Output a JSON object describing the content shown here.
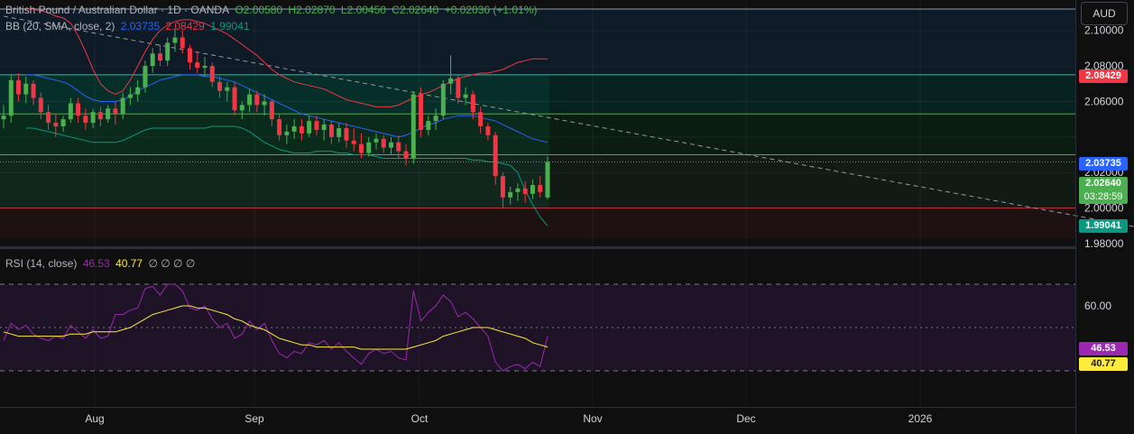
{
  "header": {
    "symbol_title": "British Pound / Australian Dollar · 1D · OANDA",
    "open": "O2.00580",
    "high": "H2.02870",
    "low": "L2.00450",
    "close": "C2.02640",
    "change": "+0.02036 (+1.01%)"
  },
  "bb_legend": {
    "label": "BB (20, SMA, close, 2)",
    "basis": "2.03735",
    "upper": "2.08429",
    "lower": "1.99041"
  },
  "rsi_legend": {
    "label": "RSI (14, close)",
    "rsi": "46.53",
    "ma": "40.77",
    "extra": "∅ ∅ ∅ ∅"
  },
  "currency_button": "AUD",
  "price_axis_labels": [
    "2.10000",
    "2.08000",
    "2.06000",
    "2.02000",
    "2.00000",
    "1.98000"
  ],
  "price_tags": {
    "upper": {
      "text": "2.08429",
      "color": "#f23645"
    },
    "basis": {
      "text": "2.03735",
      "color": "#2962ff"
    },
    "last": {
      "text": "2.02640",
      "countdown": "03:28:59",
      "color": "#4caf50"
    },
    "lower": {
      "text": "1.99041",
      "color": "#089981"
    }
  },
  "rsi_axis_labels": [
    "60.00"
  ],
  "rsi_tags": {
    "rsi": {
      "text": "46.53",
      "color": "#9c27b0"
    },
    "ma": {
      "text": "40.77",
      "color": "#ffeb3b"
    }
  },
  "time_axis_labels": [
    "Aug",
    "Sep",
    "Oct",
    "Nov",
    "Dec",
    "2026"
  ],
  "colors": {
    "up": "#4caf50",
    "down": "#f23645",
    "bb_basis": "#2962ff",
    "bb_upper": "#f23645",
    "bb_lower": "#089981",
    "rsi": "#9c27b0",
    "rsi_ma": "#ffeb3b"
  },
  "chart_data": {
    "type": "candlestick",
    "price_range": [
      1.98,
      2.11
    ],
    "rsi_range": [
      20,
      80
    ],
    "horizontal_levels": [
      2.112,
      2.075,
      2.053,
      2.03,
      2.0
    ],
    "trendline": {
      "start": [
        0,
        2.108
      ],
      "end": [
        164,
        1.98
      ]
    },
    "candles": [
      [
        2.05,
        2.058,
        2.045,
        2.052
      ],
      [
        2.052,
        2.075,
        2.048,
        2.072
      ],
      [
        2.072,
        2.076,
        2.06,
        2.064
      ],
      [
        2.064,
        2.074,
        2.059,
        2.07
      ],
      [
        2.07,
        2.072,
        2.058,
        2.062
      ],
      [
        2.062,
        2.065,
        2.05,
        2.054
      ],
      [
        2.054,
        2.058,
        2.044,
        2.048
      ],
      [
        2.048,
        2.053,
        2.04,
        2.046
      ],
      [
        2.046,
        2.052,
        2.043,
        2.05
      ],
      [
        2.05,
        2.062,
        2.048,
        2.059
      ],
      [
        2.059,
        2.062,
        2.048,
        2.052
      ],
      [
        2.052,
        2.056,
        2.044,
        2.048
      ],
      [
        2.048,
        2.056,
        2.045,
        2.054
      ],
      [
        2.054,
        2.057,
        2.046,
        2.05
      ],
      [
        2.05,
        2.058,
        2.048,
        2.056
      ],
      [
        2.056,
        2.06,
        2.047,
        2.053
      ],
      [
        2.053,
        2.065,
        2.05,
        2.062
      ],
      [
        2.062,
        2.068,
        2.058,
        2.064
      ],
      [
        2.064,
        2.072,
        2.06,
        2.068
      ],
      [
        2.068,
        2.083,
        2.065,
        2.08
      ],
      [
        2.08,
        2.09,
        2.076,
        2.087
      ],
      [
        2.087,
        2.092,
        2.08,
        2.083
      ],
      [
        2.083,
        2.096,
        2.08,
        2.093
      ],
      [
        2.093,
        2.101,
        2.088,
        2.096
      ],
      [
        2.096,
        2.1,
        2.087,
        2.09
      ],
      [
        2.09,
        2.092,
        2.078,
        2.082
      ],
      [
        2.082,
        2.088,
        2.076,
        2.079
      ],
      [
        2.079,
        2.085,
        2.074,
        2.08
      ],
      [
        2.08,
        2.082,
        2.068,
        2.071
      ],
      [
        2.071,
        2.074,
        2.062,
        2.066
      ],
      [
        2.066,
        2.071,
        2.06,
        2.068
      ],
      [
        2.068,
        2.071,
        2.052,
        2.055
      ],
      [
        2.055,
        2.06,
        2.05,
        2.058
      ],
      [
        2.058,
        2.067,
        2.054,
        2.064
      ],
      [
        2.064,
        2.066,
        2.054,
        2.058
      ],
      [
        2.058,
        2.064,
        2.052,
        2.06
      ],
      [
        2.06,
        2.061,
        2.046,
        2.05
      ],
      [
        2.05,
        2.053,
        2.038,
        2.041
      ],
      [
        2.041,
        2.047,
        2.036,
        2.043
      ],
      [
        2.043,
        2.05,
        2.039,
        2.046
      ],
      [
        2.046,
        2.05,
        2.038,
        2.042
      ],
      [
        2.042,
        2.052,
        2.04,
        2.049
      ],
      [
        2.049,
        2.052,
        2.041,
        2.044
      ],
      [
        2.044,
        2.05,
        2.038,
        2.047
      ],
      [
        2.047,
        2.049,
        2.036,
        2.04
      ],
      [
        2.04,
        2.048,
        2.037,
        2.045
      ],
      [
        2.045,
        2.048,
        2.034,
        2.038
      ],
      [
        2.038,
        2.045,
        2.032,
        2.036
      ],
      [
        2.036,
        2.042,
        2.028,
        2.031
      ],
      [
        2.031,
        2.04,
        2.029,
        2.037
      ],
      [
        2.037,
        2.042,
        2.033,
        2.039
      ],
      [
        2.039,
        2.041,
        2.031,
        2.034
      ],
      [
        2.034,
        2.04,
        2.03,
        2.037
      ],
      [
        2.037,
        2.041,
        2.028,
        2.032
      ],
      [
        2.032,
        2.036,
        2.024,
        2.028
      ],
      [
        2.028,
        2.066,
        2.025,
        2.064
      ],
      [
        2.064,
        2.068,
        2.04,
        2.044
      ],
      [
        2.044,
        2.052,
        2.041,
        2.049
      ],
      [
        2.049,
        2.056,
        2.044,
        2.052
      ],
      [
        2.052,
        2.072,
        2.05,
        2.07
      ],
      [
        2.07,
        2.086,
        2.064,
        2.073
      ],
      [
        2.073,
        2.075,
        2.059,
        2.062
      ],
      [
        2.062,
        2.068,
        2.058,
        2.064
      ],
      [
        2.064,
        2.066,
        2.05,
        2.054
      ],
      [
        2.054,
        2.057,
        2.042,
        2.046
      ],
      [
        2.046,
        2.048,
        2.038,
        2.041
      ],
      [
        2.041,
        2.043,
        2.013,
        2.018
      ],
      [
        2.018,
        2.02,
        2.0,
        2.006
      ],
      [
        2.006,
        2.012,
        2.002,
        2.009
      ],
      [
        2.009,
        2.014,
        2.004,
        2.011
      ],
      [
        2.011,
        2.015,
        2.003,
        2.008
      ],
      [
        2.008,
        2.016,
        2.005,
        2.013
      ],
      [
        2.013,
        2.018,
        2.006,
        2.009
      ],
      [
        2.006,
        2.029,
        2.005,
        2.026
      ]
    ],
    "bb_upper": [
      2.112,
      2.112,
      2.111,
      2.11,
      2.108,
      2.107,
      2.104,
      2.097,
      2.088,
      2.078,
      2.07,
      2.066,
      2.064,
      2.066,
      2.072,
      2.08,
      2.088,
      2.095,
      2.1,
      2.103,
      2.105,
      2.106,
      2.106,
      2.105,
      2.104,
      2.102,
      2.1,
      2.098,
      2.095,
      2.092,
      2.089,
      2.086,
      2.082,
      2.078,
      2.075,
      2.073,
      2.071,
      2.07,
      2.069,
      2.068,
      2.067,
      2.065,
      2.063,
      2.061,
      2.06,
      2.059,
      2.058,
      2.057,
      2.057,
      2.057,
      2.058,
      2.06,
      2.062,
      2.064,
      2.065,
      2.067,
      2.069,
      2.071,
      2.073,
      2.074,
      2.075,
      2.076,
      2.076,
      2.077,
      2.078,
      2.08,
      2.082,
      2.083,
      2.084,
      2.084,
      2.084
    ],
    "bb_basis": [
      2.075,
      2.075,
      2.074,
      2.073,
      2.072,
      2.071,
      2.069,
      2.066,
      2.063,
      2.061,
      2.06,
      2.06,
      2.06,
      2.061,
      2.063,
      2.066,
      2.068,
      2.07,
      2.072,
      2.073,
      2.074,
      2.075,
      2.075,
      2.075,
      2.074,
      2.074,
      2.073,
      2.072,
      2.071,
      2.069,
      2.067,
      2.065,
      2.063,
      2.061,
      2.059,
      2.057,
      2.055,
      2.053,
      2.052,
      2.051,
      2.05,
      2.049,
      2.048,
      2.047,
      2.046,
      2.045,
      2.044,
      2.043,
      2.042,
      2.041,
      2.04,
      2.041,
      2.043,
      2.045,
      2.047,
      2.048,
      2.05,
      2.051,
      2.052,
      2.052,
      2.052,
      2.051,
      2.05,
      2.049,
      2.047,
      2.045,
      2.043,
      2.041,
      2.039,
      2.038,
      2.037
    ],
    "bb_lower": [
      2.045,
      2.045,
      2.044,
      2.043,
      2.042,
      2.041,
      2.04,
      2.039,
      2.038,
      2.037,
      2.037,
      2.037,
      2.037,
      2.038,
      2.04,
      2.042,
      2.044,
      2.045,
      2.045,
      2.045,
      2.045,
      2.045,
      2.045,
      2.045,
      2.045,
      2.046,
      2.046,
      2.046,
      2.046,
      2.045,
      2.043,
      2.04,
      2.037,
      2.035,
      2.033,
      2.032,
      2.031,
      2.031,
      2.031,
      2.032,
      2.032,
      2.032,
      2.031,
      2.031,
      2.03,
      2.03,
      2.03,
      2.029,
      2.028,
      2.028,
      2.028,
      2.028,
      2.028,
      2.028,
      2.028,
      2.028,
      2.028,
      2.028,
      2.028,
      2.028,
      2.027,
      2.027,
      2.026,
      2.026,
      2.025,
      2.024,
      2.02,
      2.01,
      2.002,
      1.995,
      1.99
    ],
    "bb_offset": 3,
    "rsi": [
      44,
      52,
      49,
      51,
      47,
      45,
      44,
      46,
      45,
      51,
      48,
      45,
      49,
      45,
      46,
      56,
      56,
      58,
      59,
      68,
      69,
      65,
      70,
      70,
      67,
      59,
      58,
      60,
      54,
      50,
      52,
      45,
      47,
      53,
      49,
      52,
      44,
      38,
      36,
      39,
      38,
      43,
      42,
      44,
      40,
      43,
      39,
      36,
      33,
      38,
      40,
      38,
      39,
      36,
      35,
      67,
      53,
      57,
      60,
      65,
      62,
      55,
      57,
      54,
      50,
      46,
      34,
      30,
      32,
      33,
      31,
      34,
      32,
      46
    ],
    "rsi_ma": [
      48,
      47,
      46,
      46,
      46,
      46,
      46,
      46,
      46,
      47,
      47,
      47,
      48,
      48,
      48,
      48,
      49,
      50,
      52,
      54,
      56,
      57,
      58,
      59,
      60,
      60,
      59,
      59,
      58,
      57,
      56,
      54,
      53,
      51,
      50,
      49,
      47,
      45,
      44,
      43,
      42,
      42,
      41,
      41,
      41,
      41,
      41,
      41,
      40,
      40,
      40,
      40,
      40,
      40,
      40,
      41,
      42,
      43,
      44,
      46,
      47,
      48,
      49,
      50,
      50,
      50,
      49,
      48,
      47,
      46,
      45,
      43,
      42,
      41
    ]
  }
}
